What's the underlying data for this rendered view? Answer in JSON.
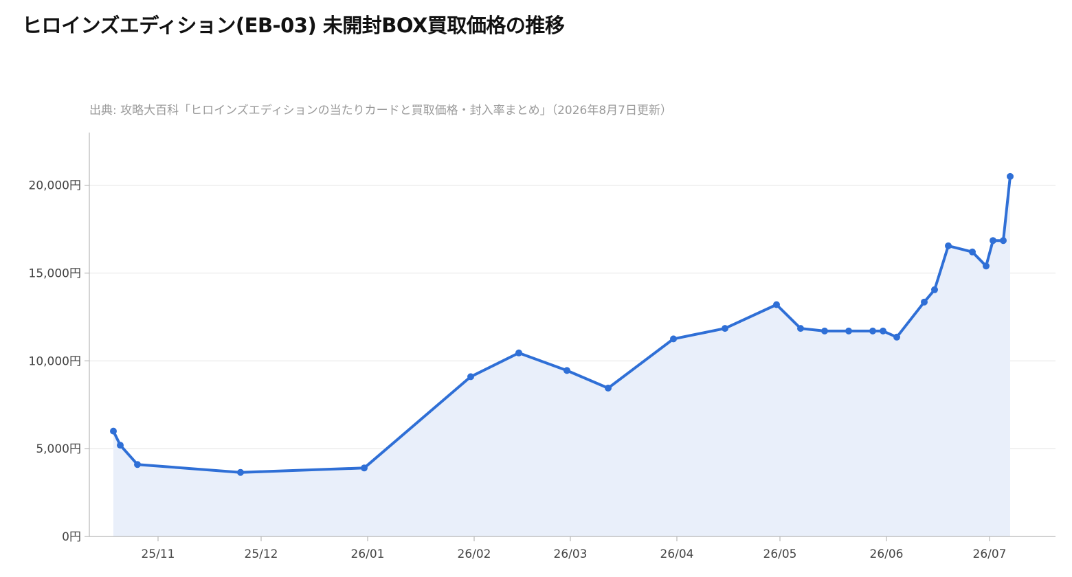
{
  "title": "ヒロインズエディション(EB-03) 未開封BOX買取価格の推移",
  "source": "出典: 攻略大百科「ヒロインズエディションの当たりカードと買取価格・封入率まとめ」（2026年8月7日更新）",
  "chart_data": {
    "type": "area",
    "title": "ヒロインズエディション(EB-03) 未開封BOX買取価格の推移",
    "xlabel": "",
    "ylabel": "",
    "ylim": [
      0,
      23000
    ],
    "y_ticks": [
      0,
      5000,
      10000,
      15000,
      20000
    ],
    "y_tick_labels": [
      "0円",
      "5,000円",
      "10,000円",
      "15,000円",
      "20,000円"
    ],
    "x_tick_dates": [
      "2025-11-01",
      "2025-12-01",
      "2026-01-01",
      "2026-02-01",
      "2026-03-01",
      "2026-04-01",
      "2026-05-01",
      "2026-06-01",
      "2026-07-01"
    ],
    "x_tick_labels": [
      "25/11",
      "25/12",
      "26/01",
      "26/02",
      "26/03",
      "26/04",
      "26/05",
      "26/06",
      "26/07"
    ],
    "grid": "horizontal",
    "legend": "none",
    "line_color": "#2f6fd6",
    "fill_color": "#e9effa",
    "x": [
      "2025-10-19",
      "2025-10-21",
      "2025-10-26",
      "2025-11-25",
      "2025-12-31",
      "2026-01-31",
      "2026-02-14",
      "2026-02-28",
      "2026-03-12",
      "2026-03-31",
      "2026-04-15",
      "2026-04-30",
      "2026-05-07",
      "2026-05-14",
      "2026-05-21",
      "2026-05-28",
      "2026-05-31",
      "2026-06-04",
      "2026-06-12",
      "2026-06-15",
      "2026-06-19",
      "2026-06-26",
      "2026-06-30",
      "2026-07-02",
      "2026-07-05",
      "2026-07-07"
    ],
    "values": [
      6000,
      5200,
      4100,
      3650,
      3900,
      9100,
      10450,
      9450,
      8450,
      11250,
      11850,
      13200,
      11850,
      11700,
      11700,
      11700,
      11700,
      11350,
      13350,
      14050,
      16550,
      16200,
      15400,
      16850,
      16850,
      20500
    ]
  }
}
